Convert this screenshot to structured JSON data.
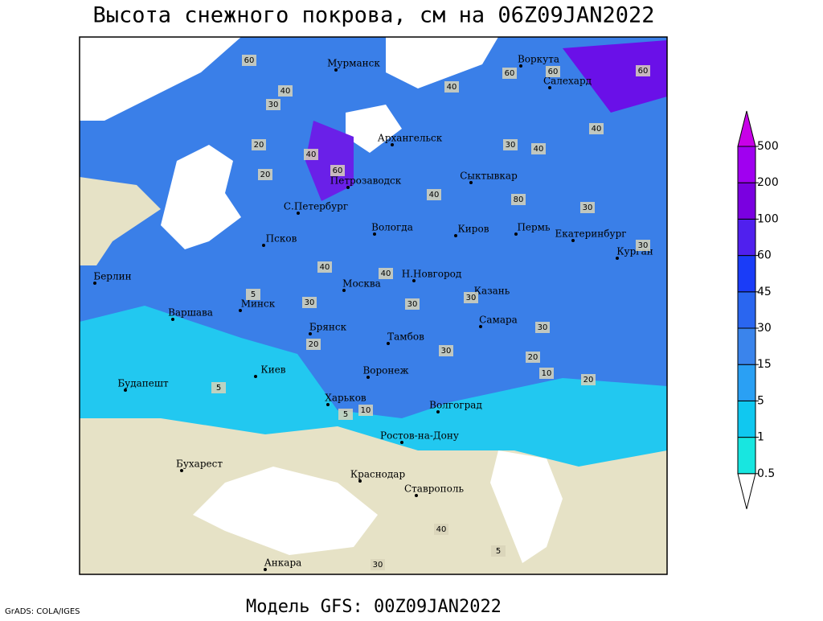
{
  "header": {
    "title": "Высота снежного покрова, см на 06Z09JAN2022"
  },
  "map": {
    "cities": [
      "Мурманск",
      "Воркута",
      "Салехард",
      "Архангельск",
      "Петрозаводск",
      "Сыктывкар",
      "С.Петербург",
      "Вологда",
      "Киров",
      "Пермь",
      "Екатеринбург",
      "Псков",
      "Курган",
      "Берлин",
      "Н.Новгород",
      "Москва",
      "Казань",
      "Минск",
      "Варшава",
      "Самара",
      "Брянск",
      "Тамбов",
      "Киев",
      "Воронеж",
      "Будапешт",
      "Харьков",
      "Волгоград",
      "Ростов-на-Дону",
      "Бухарест",
      "Краснодар",
      "Ставрополь",
      "Анкара"
    ],
    "contour_labels": [
      60,
      40,
      30,
      20,
      40,
      60,
      40,
      30,
      40,
      60,
      80,
      40,
      30,
      30,
      20,
      40,
      40,
      40,
      5,
      30,
      30,
      20,
      30,
      20,
      10,
      20,
      5,
      5,
      10,
      30,
      40,
      60,
      60,
      30,
      5,
      30
    ]
  },
  "colorbar": {
    "levels": [
      0.5,
      1,
      5,
      15,
      30,
      45,
      60,
      100,
      200,
      500
    ],
    "colors": [
      "#a8f4f8",
      "#18e6e0",
      "#10c8f0",
      "#2aa0f4",
      "#3a84ec",
      "#2a66f0",
      "#1a3cf8",
      "#5020ee",
      "#7a00e0",
      "#a000f0",
      "#c800e8"
    ]
  },
  "footer": {
    "model": "Модель GFS: 00Z09JAN2022",
    "credit": "GrADS: COLA/IGES"
  }
}
